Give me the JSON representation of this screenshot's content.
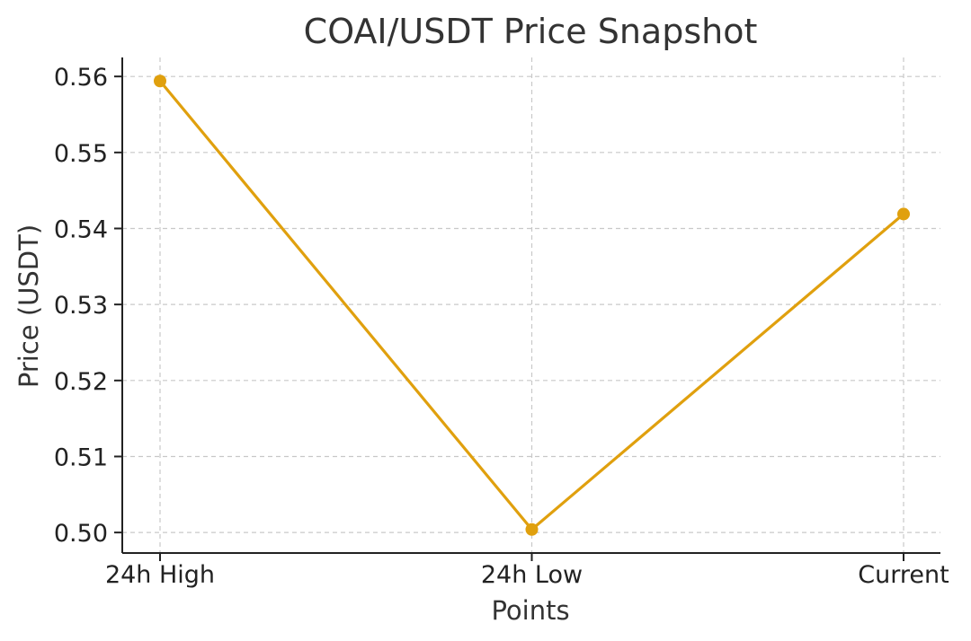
{
  "chart_data": {
    "type": "line",
    "title": "COAI/USDT Price Snapshot",
    "xlabel": "Points",
    "ylabel": "Price (USDT)",
    "categories": [
      "24h High",
      "24h Low",
      "Current"
    ],
    "series": [
      {
        "values": [
          0.5594,
          0.5004,
          0.5419
        ],
        "color": "#E0A00E"
      }
    ],
    "ylim": [
      0.4973,
      0.5625
    ],
    "yticks": [
      0.5,
      0.51,
      0.52,
      0.53,
      0.54,
      0.55,
      0.56
    ],
    "ytick_labels": [
      "0.50",
      "0.51",
      "0.52",
      "0.53",
      "0.54",
      "0.55",
      "0.56"
    ],
    "grid": true,
    "markers": true
  }
}
